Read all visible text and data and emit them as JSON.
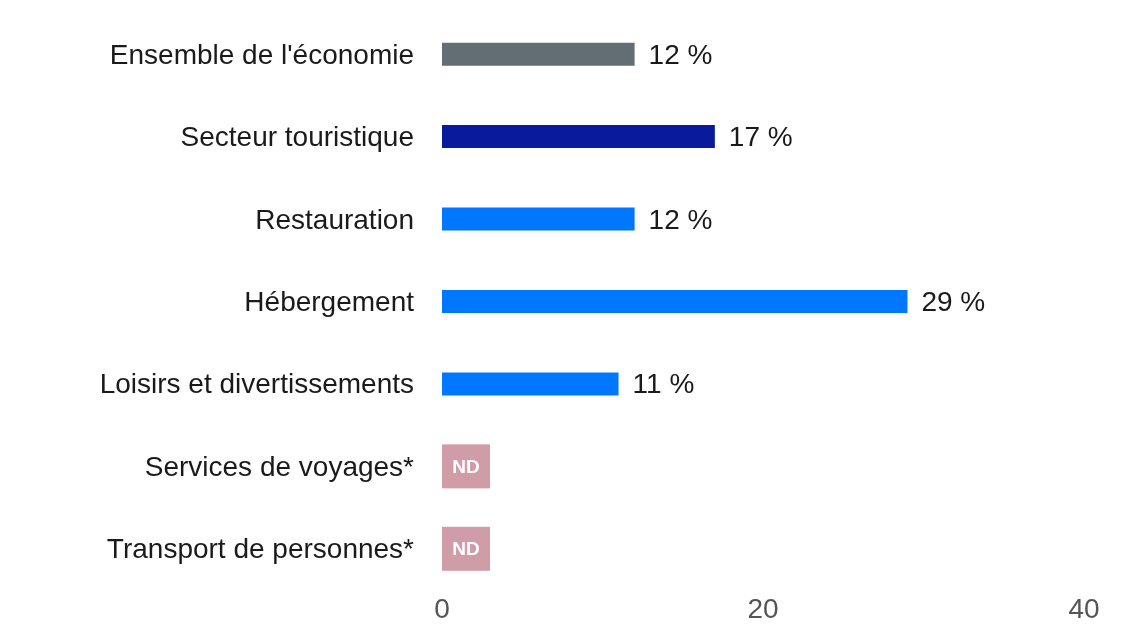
{
  "chart_data": {
    "type": "bar",
    "orientation": "horizontal",
    "categories": [
      "Ensemble de l'économie",
      "Secteur touristique",
      "Restauration",
      "Hébergement",
      "Loisirs et divertissements",
      "Services de voyages*",
      "Transport de personnes*"
    ],
    "values": [
      12,
      17,
      12,
      29,
      11,
      null,
      null
    ],
    "colors": [
      "#636d74",
      "#0a1a9c",
      "#0077ff",
      "#0077ff",
      "#0077ff",
      "#d09ca8",
      "#d09ca8"
    ],
    "value_labels": [
      "12 %",
      "17 %",
      "12 %",
      "29 %",
      "11 %",
      "ND",
      "ND"
    ],
    "xlim": [
      0,
      40
    ],
    "xticks": [
      0,
      20,
      40
    ]
  }
}
